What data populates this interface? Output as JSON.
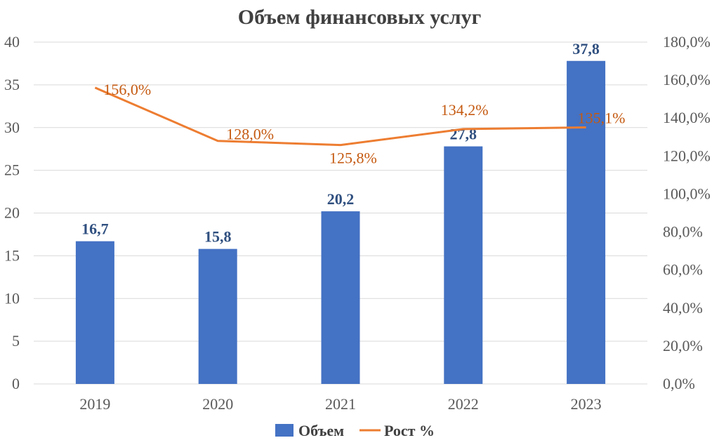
{
  "chart_data": {
    "type": "bar",
    "title": "Объем финансовых услуг",
    "categories": [
      "2019",
      "2020",
      "2021",
      "2022",
      "2023"
    ],
    "series": [
      {
        "name": "Объем",
        "type": "bar",
        "axis": "left",
        "values": [
          16.7,
          15.8,
          20.2,
          27.8,
          37.8
        ],
        "labels": [
          "16,7",
          "15,8",
          "20,2",
          "27,8",
          "37,8"
        ],
        "color": "#4472c4"
      },
      {
        "name": "Рост %",
        "type": "line",
        "axis": "right",
        "values": [
          156.0,
          128.0,
          125.8,
          134.2,
          135.1
        ],
        "labels": [
          "156,0%",
          "128,0%",
          "125,8%",
          "134,2%",
          "135,1%"
        ],
        "color": "#ed7d31"
      }
    ],
    "y_left": {
      "ylim": [
        0,
        40
      ],
      "ticks": [
        "0",
        "5",
        "10",
        "15",
        "20",
        "25",
        "30",
        "35",
        "40"
      ]
    },
    "y_right": {
      "ylim": [
        0,
        180
      ],
      "ticks": [
        "0,0%",
        "20,0%",
        "40,0%",
        "60,0%",
        "80,0%",
        "100,0%",
        "120,0%",
        "140,0%",
        "160,0%",
        "180,0%"
      ]
    },
    "grid": true,
    "legend_position": "bottom"
  }
}
